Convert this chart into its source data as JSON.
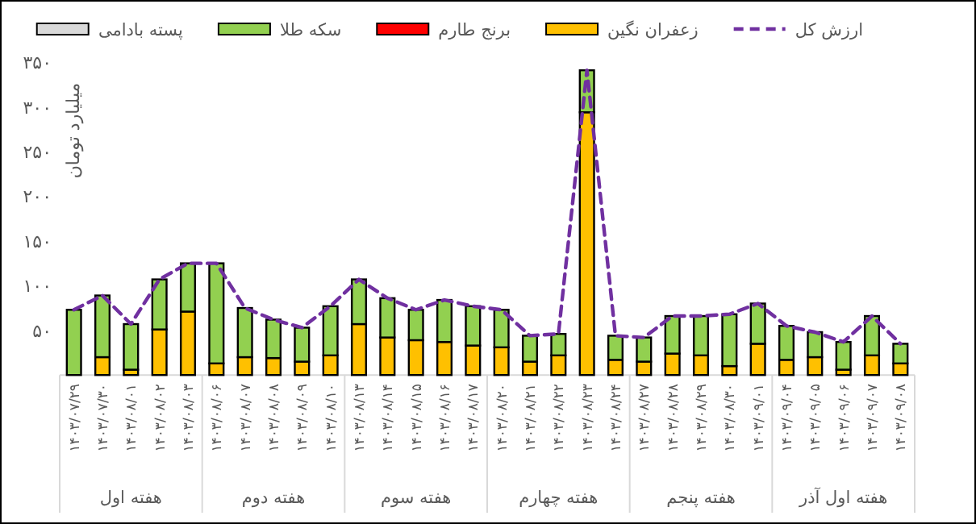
{
  "chart_data": {
    "type": "bar",
    "stacked": true,
    "ylabel": "میلیارد تومان",
    "legend": "top",
    "grid": false,
    "ylim": [
      0,
      350
    ],
    "yticks": [
      {
        "value": 50,
        "label": "۵۰"
      },
      {
        "value": 100,
        "label": "۱۰۰"
      },
      {
        "value": 150,
        "label": "۱۵۰"
      },
      {
        "value": 200,
        "label": "۲۰۰"
      },
      {
        "value": 250,
        "label": "۲۵۰"
      },
      {
        "value": 300,
        "label": "۳۰۰"
      },
      {
        "value": 350,
        "label": "۳۵۰"
      }
    ],
    "categories": [
      "۱۴۰۳/۰۷/۲۹",
      "۱۴۰۳/۰۷/۳۰",
      "۱۴۰۳/۰۸/۰۱",
      "۱۴۰۳/۰۸/۰۲",
      "۱۴۰۳/۰۸/۰۳",
      "۱۴۰۳/۰۸/۰۶",
      "۱۴۰۳/۰۸/۰۷",
      "۱۴۰۳/۰۸/۰۸",
      "۱۴۰۳/۰۸/۰۹",
      "۱۴۰۳/۰۸/۱۰",
      "۱۴۰۳/۰۸/۱۳",
      "۱۴۰۳/۰۸/۱۴",
      "۱۴۰۳/۰۸/۱۵",
      "۱۴۰۳/۰۸/۱۶",
      "۱۴۰۳/۰۸/۱۷",
      "۱۴۰۳/۰۸/۲۰",
      "۱۴۰۳/۰۸/۲۱",
      "۱۴۰۳/۰۸/۲۲",
      "۱۴۰۳/۰۸/۲۳",
      "۱۴۰۳/۰۸/۲۴",
      "۱۴۰۳/۰۸/۲۷",
      "۱۴۰۳/۰۸/۲۸",
      "۱۴۰۳/۰۸/۲۹",
      "۱۴۰۳/۰۸/۳۰",
      "۱۴۰۳/۰۹/۰۱",
      "۱۴۰۳/۰۹/۰۴",
      "۱۴۰۳/۰۹/۰۵",
      "۱۴۰۳/۰۹/۰۶",
      "۱۴۰۳/۰۹/۰۷",
      "۱۴۰۳/۰۹/۰۸"
    ],
    "series": [
      {
        "name": "ارزش کل",
        "type": "line",
        "line_style": "dashed",
        "marker": "none",
        "color": "#7030a0",
        "values": [
          73,
          89,
          57,
          107,
          125,
          125,
          75,
          62,
          53,
          77,
          107,
          86,
          73,
          84,
          77,
          73,
          44,
          46,
          341,
          44,
          42,
          66,
          66,
          68,
          80,
          55,
          48,
          37,
          66,
          35
        ]
      },
      {
        "name": "زعفران نگین",
        "color": "#ffc000",
        "values": [
          0,
          20,
          6,
          51,
          71,
          13,
          20,
          19,
          15,
          22,
          57,
          42,
          39,
          37,
          33,
          31,
          15,
          22,
          294,
          17,
          15,
          24,
          22,
          10,
          35,
          17,
          20,
          6,
          22,
          13
        ]
      },
      {
        "name": "برنج طارم",
        "color": "#ff0000",
        "values": [
          0,
          0,
          0,
          0,
          0,
          0,
          0,
          0,
          0,
          0,
          0,
          0,
          0,
          0,
          0,
          0,
          0,
          0,
          0,
          0,
          0,
          0,
          0,
          0,
          0,
          0,
          0,
          0,
          0,
          0
        ]
      },
      {
        "name": "سکه طلا",
        "color": "#92d050",
        "values": [
          73,
          69,
          51,
          56,
          54,
          112,
          55,
          43,
          38,
          55,
          50,
          44,
          34,
          47,
          44,
          42,
          29,
          24,
          47,
          27,
          27,
          42,
          44,
          58,
          45,
          38,
          28,
          31,
          44,
          22
        ]
      },
      {
        "name": "پسته بادامی",
        "color": "#d9d9d9",
        "values": [
          0,
          0,
          0,
          0,
          0,
          0,
          0,
          0,
          0,
          0,
          0,
          0,
          0,
          0,
          0,
          0,
          0,
          0,
          0,
          0,
          0,
          0,
          0,
          0,
          0,
          0,
          0,
          0,
          0,
          0
        ]
      }
    ],
    "annotations": [
      "هفته اول",
      "هفته دوم",
      "هفته سوم",
      "هفته چهارم",
      "هفته پنجم",
      "هفته اول آذر"
    ]
  }
}
